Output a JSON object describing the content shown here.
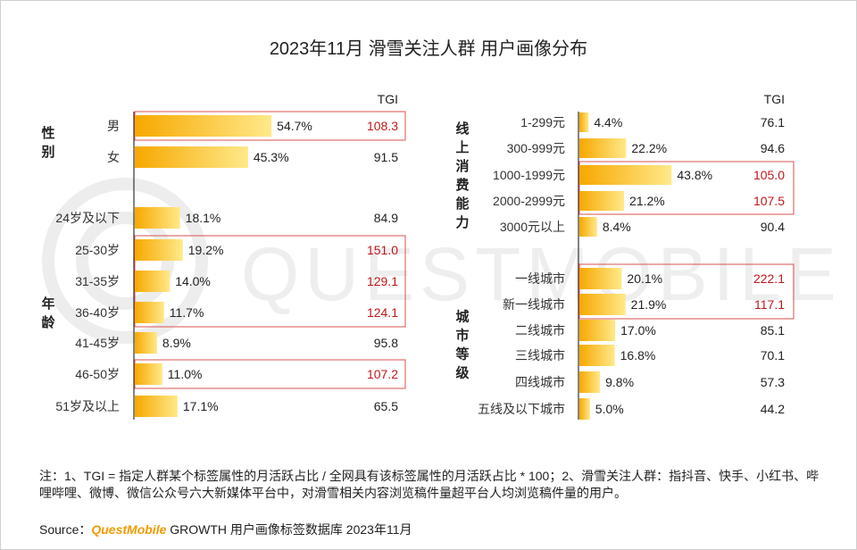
{
  "title": "2023年11月 滑雪关注人群 用户画像分布",
  "watermark": "QUESTMOBILE",
  "colors": {
    "bar_start": "#f7a800",
    "bar_end": "#ffe98a",
    "highlight_border": "#d9534f",
    "tgi_highlight": "#c0161b",
    "tgi_normal": "#222222"
  },
  "note": "注：1、TGI = 指定人群某个标签属性的月活跃占比 / 全网具有该标签属性的月活跃占比 * 100；2、滑雪关注人群：指抖音、快手、小红书、哔哩哔哩、微博、微信公众号六大新媒体平台中，对滑雪相关内容浏览稿件量超平台人均浏览稿件量的用户。",
  "source": {
    "prefix": "Source：",
    "brand": "QuestMobile",
    "suffix": " GROWTH 用户画像标签数据库 2023年11月"
  },
  "chart_data": [
    {
      "type": "bar",
      "tgi_header": "TGI",
      "groups": [
        {
          "name": "性别",
          "categories": [
            "男",
            "女"
          ],
          "values": [
            54.7,
            45.3
          ],
          "tgi": [
            108.3,
            91.5
          ],
          "highlight": [
            true,
            false
          ]
        },
        {
          "name": "年龄",
          "categories": [
            "24岁及以下",
            "25-30岁",
            "31-35岁",
            "36-40岁",
            "41-45岁",
            "46-50岁",
            "51岁及以上"
          ],
          "values": [
            18.1,
            19.2,
            14.0,
            11.7,
            8.9,
            11.0,
            17.1
          ],
          "tgi": [
            84.9,
            151.0,
            129.1,
            124.1,
            95.8,
            107.2,
            65.5
          ],
          "highlight": [
            false,
            true,
            true,
            true,
            false,
            true,
            false
          ]
        }
      ]
    },
    {
      "type": "bar",
      "tgi_header": "TGI",
      "groups": [
        {
          "name": "线上消费能力",
          "categories": [
            "1-299元",
            "300-999元",
            "1000-1999元",
            "2000-2999元",
            "3000元以上"
          ],
          "values": [
            4.4,
            22.2,
            43.8,
            21.2,
            8.4
          ],
          "tgi": [
            76.1,
            94.6,
            105.0,
            107.5,
            90.4
          ],
          "highlight": [
            false,
            false,
            true,
            true,
            false
          ]
        },
        {
          "name": "城市等级",
          "categories": [
            "一线城市",
            "新一线城市",
            "二线城市",
            "三线城市",
            "四线城市",
            "五线及以下城市"
          ],
          "values": [
            20.1,
            21.9,
            17.0,
            16.8,
            9.8,
            5.0
          ],
          "tgi": [
            222.1,
            117.1,
            85.1,
            70.1,
            57.3,
            44.2
          ],
          "highlight": [
            true,
            true,
            false,
            false,
            false,
            false
          ]
        }
      ]
    }
  ]
}
